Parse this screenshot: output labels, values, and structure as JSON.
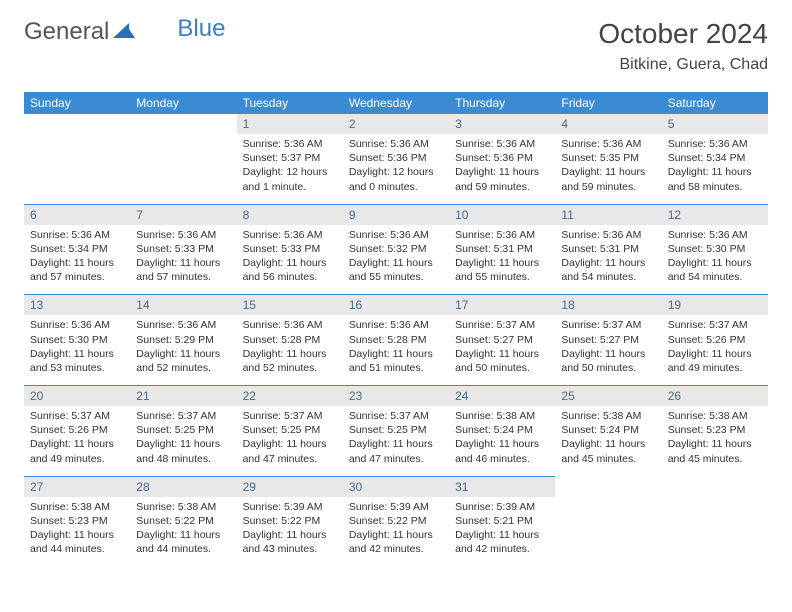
{
  "logo": {
    "part1": "General",
    "part2": "Blue"
  },
  "title": "October 2024",
  "location": "Bitkine, Guera, Chad",
  "colors": {
    "header_bg": "#3b8bd4",
    "header_text": "#ffffff",
    "daynum_bg": "#e8e8e8",
    "daynum_text": "#4a6a8a",
    "row_divider": "#3b8bd4",
    "body_text": "#333333",
    "logo_gray": "#555555",
    "logo_blue": "#3b7fc4"
  },
  "calendar": {
    "type": "table",
    "day_headers": [
      "Sunday",
      "Monday",
      "Tuesday",
      "Wednesday",
      "Thursday",
      "Friday",
      "Saturday"
    ],
    "weeks": [
      [
        null,
        null,
        {
          "n": "1",
          "sr": "5:36 AM",
          "ss": "5:37 PM",
          "dl": "12 hours and 1 minute."
        },
        {
          "n": "2",
          "sr": "5:36 AM",
          "ss": "5:36 PM",
          "dl": "12 hours and 0 minutes."
        },
        {
          "n": "3",
          "sr": "5:36 AM",
          "ss": "5:36 PM",
          "dl": "11 hours and 59 minutes."
        },
        {
          "n": "4",
          "sr": "5:36 AM",
          "ss": "5:35 PM",
          "dl": "11 hours and 59 minutes."
        },
        {
          "n": "5",
          "sr": "5:36 AM",
          "ss": "5:34 PM",
          "dl": "11 hours and 58 minutes."
        }
      ],
      [
        {
          "n": "6",
          "sr": "5:36 AM",
          "ss": "5:34 PM",
          "dl": "11 hours and 57 minutes."
        },
        {
          "n": "7",
          "sr": "5:36 AM",
          "ss": "5:33 PM",
          "dl": "11 hours and 57 minutes."
        },
        {
          "n": "8",
          "sr": "5:36 AM",
          "ss": "5:33 PM",
          "dl": "11 hours and 56 minutes."
        },
        {
          "n": "9",
          "sr": "5:36 AM",
          "ss": "5:32 PM",
          "dl": "11 hours and 55 minutes."
        },
        {
          "n": "10",
          "sr": "5:36 AM",
          "ss": "5:31 PM",
          "dl": "11 hours and 55 minutes."
        },
        {
          "n": "11",
          "sr": "5:36 AM",
          "ss": "5:31 PM",
          "dl": "11 hours and 54 minutes."
        },
        {
          "n": "12",
          "sr": "5:36 AM",
          "ss": "5:30 PM",
          "dl": "11 hours and 54 minutes."
        }
      ],
      [
        {
          "n": "13",
          "sr": "5:36 AM",
          "ss": "5:30 PM",
          "dl": "11 hours and 53 minutes."
        },
        {
          "n": "14",
          "sr": "5:36 AM",
          "ss": "5:29 PM",
          "dl": "11 hours and 52 minutes."
        },
        {
          "n": "15",
          "sr": "5:36 AM",
          "ss": "5:28 PM",
          "dl": "11 hours and 52 minutes."
        },
        {
          "n": "16",
          "sr": "5:36 AM",
          "ss": "5:28 PM",
          "dl": "11 hours and 51 minutes."
        },
        {
          "n": "17",
          "sr": "5:37 AM",
          "ss": "5:27 PM",
          "dl": "11 hours and 50 minutes."
        },
        {
          "n": "18",
          "sr": "5:37 AM",
          "ss": "5:27 PM",
          "dl": "11 hours and 50 minutes."
        },
        {
          "n": "19",
          "sr": "5:37 AM",
          "ss": "5:26 PM",
          "dl": "11 hours and 49 minutes."
        }
      ],
      [
        {
          "n": "20",
          "sr": "5:37 AM",
          "ss": "5:26 PM",
          "dl": "11 hours and 49 minutes."
        },
        {
          "n": "21",
          "sr": "5:37 AM",
          "ss": "5:25 PM",
          "dl": "11 hours and 48 minutes."
        },
        {
          "n": "22",
          "sr": "5:37 AM",
          "ss": "5:25 PM",
          "dl": "11 hours and 47 minutes."
        },
        {
          "n": "23",
          "sr": "5:37 AM",
          "ss": "5:25 PM",
          "dl": "11 hours and 47 minutes."
        },
        {
          "n": "24",
          "sr": "5:38 AM",
          "ss": "5:24 PM",
          "dl": "11 hours and 46 minutes."
        },
        {
          "n": "25",
          "sr": "5:38 AM",
          "ss": "5:24 PM",
          "dl": "11 hours and 45 minutes."
        },
        {
          "n": "26",
          "sr": "5:38 AM",
          "ss": "5:23 PM",
          "dl": "11 hours and 45 minutes."
        }
      ],
      [
        {
          "n": "27",
          "sr": "5:38 AM",
          "ss": "5:23 PM",
          "dl": "11 hours and 44 minutes."
        },
        {
          "n": "28",
          "sr": "5:38 AM",
          "ss": "5:22 PM",
          "dl": "11 hours and 44 minutes."
        },
        {
          "n": "29",
          "sr": "5:39 AM",
          "ss": "5:22 PM",
          "dl": "11 hours and 43 minutes."
        },
        {
          "n": "30",
          "sr": "5:39 AM",
          "ss": "5:22 PM",
          "dl": "11 hours and 42 minutes."
        },
        {
          "n": "31",
          "sr": "5:39 AM",
          "ss": "5:21 PM",
          "dl": "11 hours and 42 minutes."
        },
        null,
        null
      ]
    ],
    "labels": {
      "sunrise": "Sunrise:",
      "sunset": "Sunset:",
      "daylight": "Daylight:"
    }
  }
}
